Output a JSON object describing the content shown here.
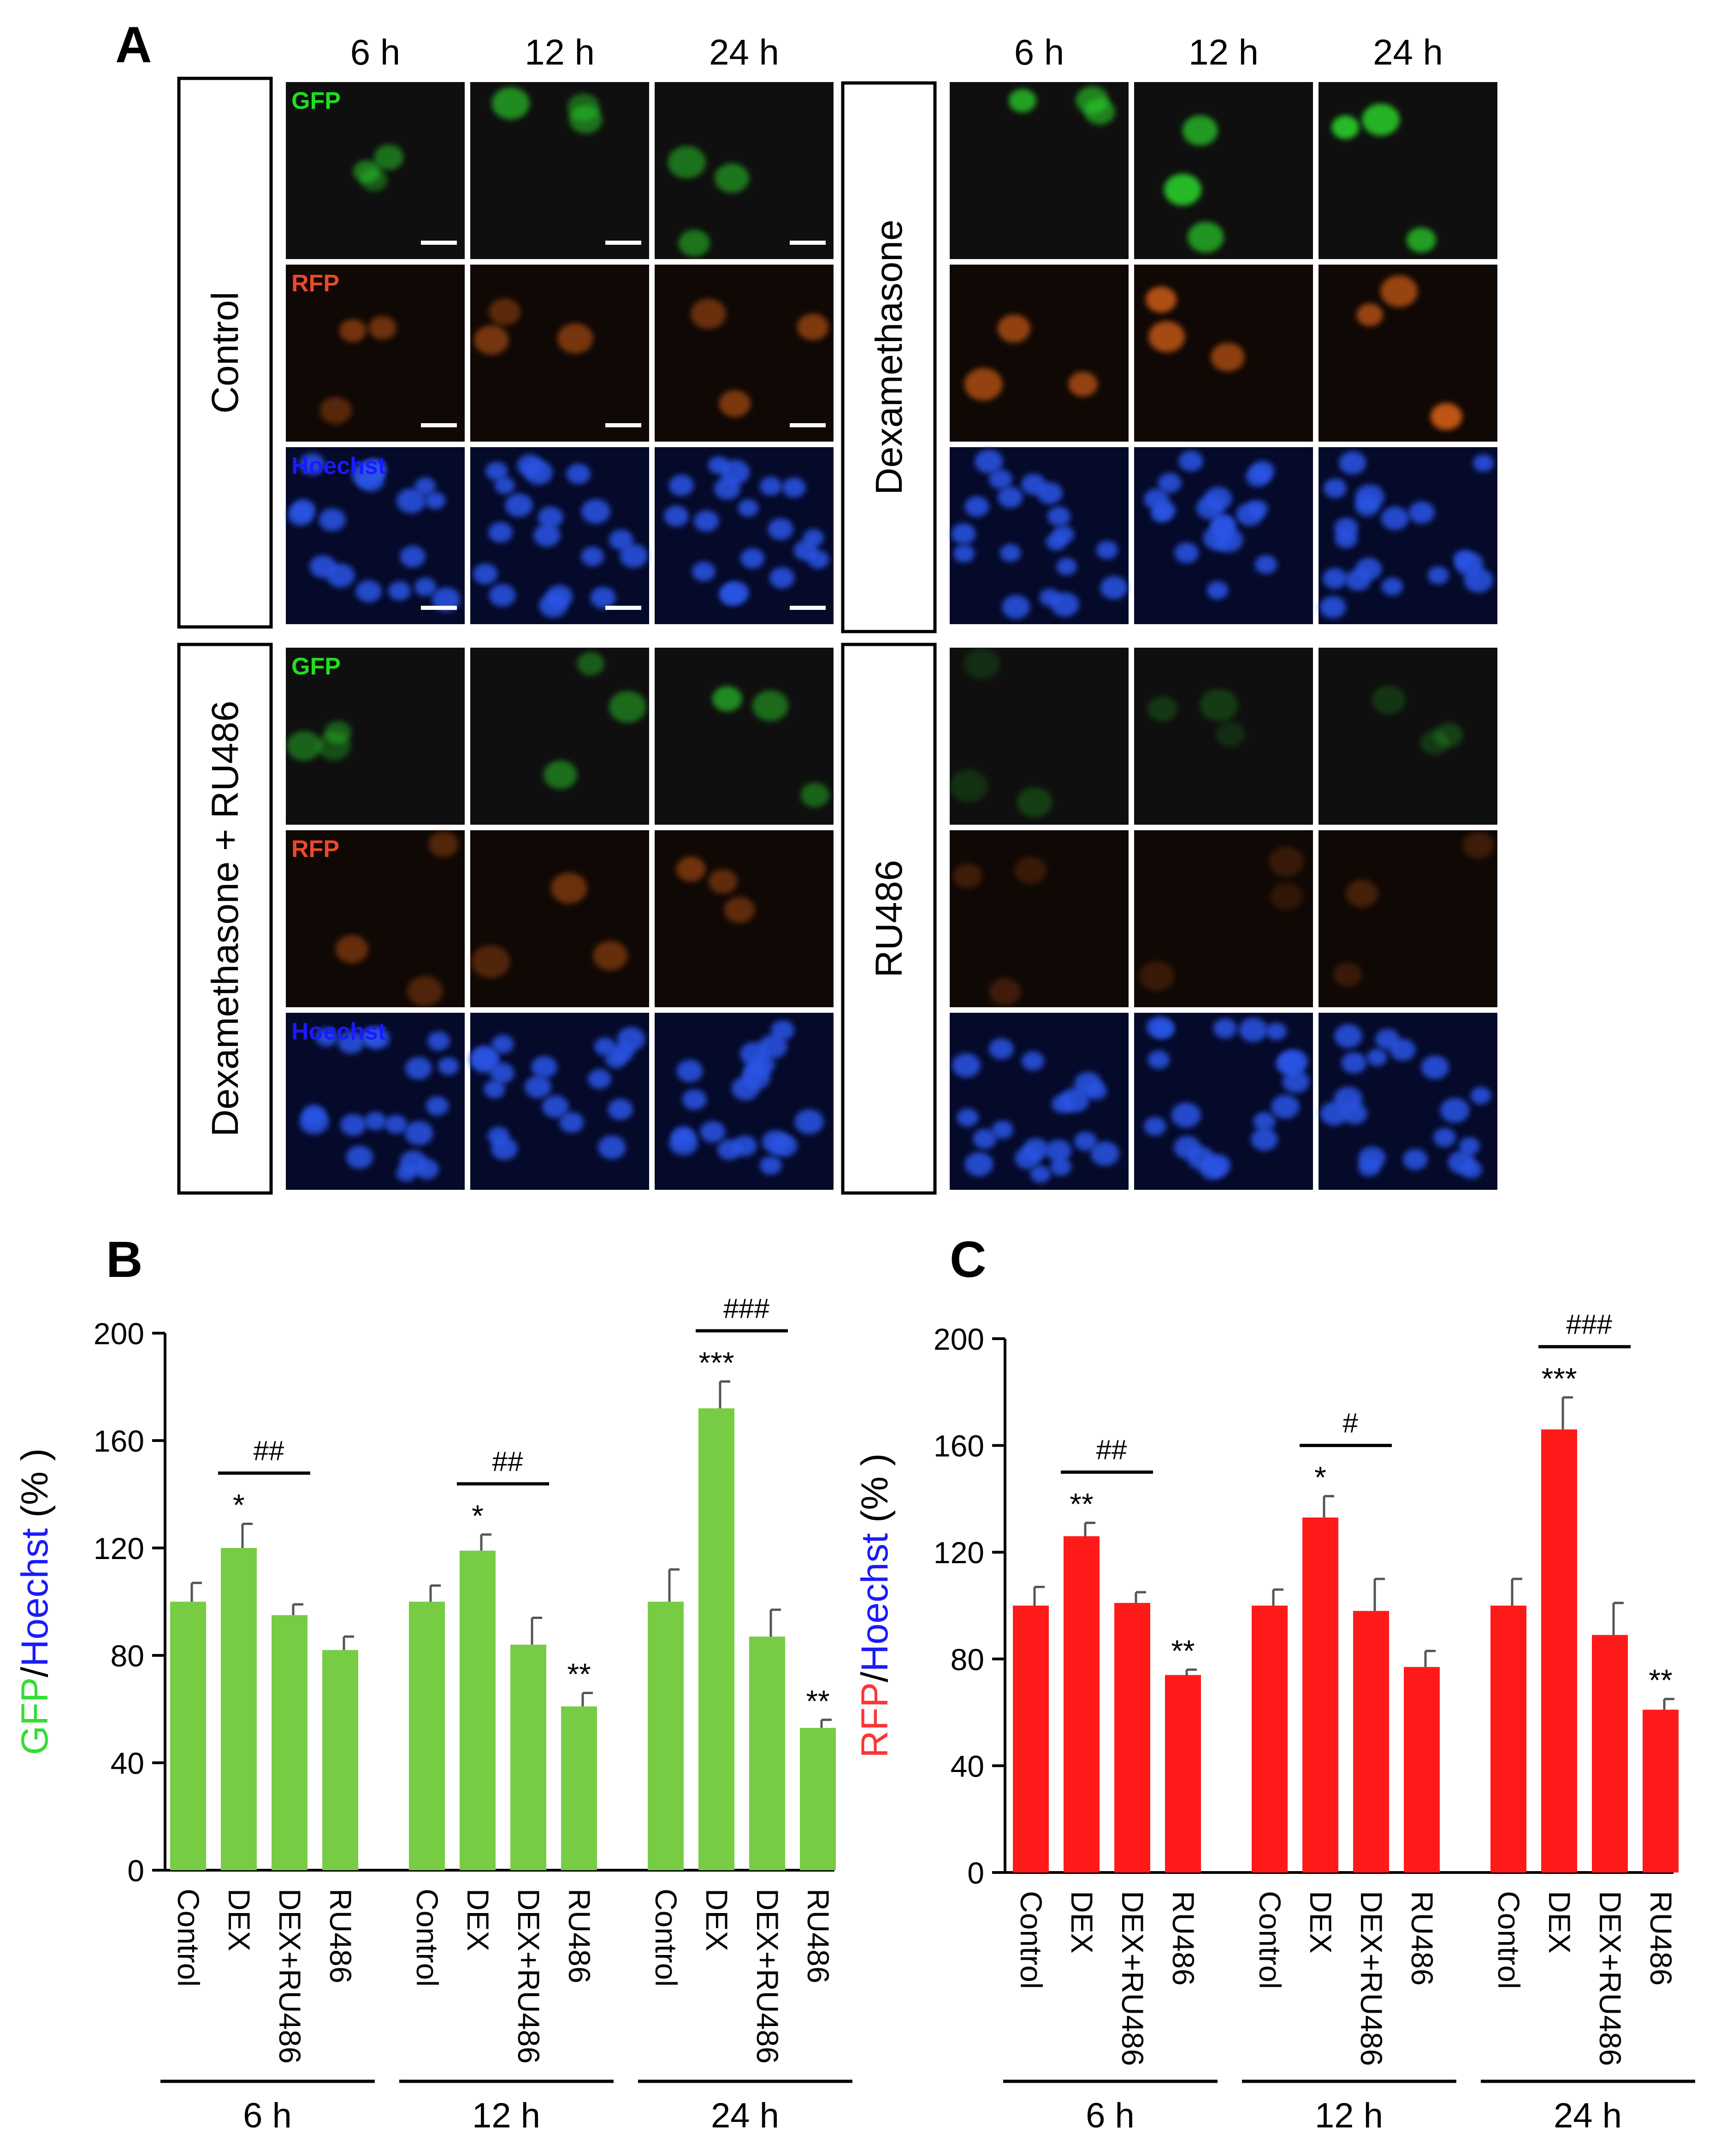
{
  "panel_letters": {
    "a": "A",
    "b": "B",
    "c": "C"
  },
  "micrograph_grid": {
    "time_labels": [
      "6 h",
      "12 h",
      "24 h"
    ],
    "channel_labels": {
      "gfp": "GFP",
      "rfp": "RFP",
      "hoechst": "Hoechst"
    },
    "conditions": [
      "Control",
      "Dexamethasone",
      "Dexamethasone + RU486",
      "RU486"
    ],
    "channel_colors": {
      "gfp": "#1fe01f",
      "rfp": "#e84a2a",
      "hoechst": "#1a1aff"
    }
  },
  "chart_data": [
    {
      "type": "bar",
      "panel": "B",
      "ylabel_parts": [
        "GFP",
        "/",
        "Hoechst",
        " (% )"
      ],
      "ylabel_colors": [
        "#33dd33",
        "#000000",
        "#1a1aff",
        "#000000"
      ],
      "ylim": [
        0,
        200
      ],
      "yticks": [
        0,
        40,
        80,
        120,
        160,
        200
      ],
      "bar_color": "#77cc44",
      "groups": [
        "6 h",
        "12 h",
        "24 h"
      ],
      "categories": [
        "Control",
        "DEX",
        "DEX+RU486",
        "RU486"
      ],
      "values": [
        [
          100,
          120,
          95,
          82
        ],
        [
          100,
          119,
          84,
          61
        ],
        [
          100,
          172,
          87,
          53
        ]
      ],
      "errors": [
        [
          7,
          9,
          4,
          5
        ],
        [
          6,
          6,
          10,
          5
        ],
        [
          12,
          10,
          10,
          3
        ]
      ],
      "marks": [
        [
          "",
          "*",
          "",
          ""
        ],
        [
          "",
          "*",
          "",
          "**"
        ],
        [
          "",
          "***",
          "",
          "**"
        ]
      ],
      "group_marks": [
        "##",
        "##",
        "###"
      ]
    },
    {
      "type": "bar",
      "panel": "C",
      "ylabel_parts": [
        "RFP",
        "/",
        "Hoechst",
        " (% )"
      ],
      "ylabel_colors": [
        "#ff3333",
        "#000000",
        "#1a1aff",
        "#000000"
      ],
      "ylim": [
        0,
        200
      ],
      "yticks": [
        0,
        40,
        80,
        120,
        160,
        200
      ],
      "bar_color": "#ff1a1a",
      "groups": [
        "6 h",
        "12 h",
        "24 h"
      ],
      "categories": [
        "Control",
        "DEX",
        "DEX+RU486",
        "RU486"
      ],
      "values": [
        [
          100,
          126,
          101,
          74
        ],
        [
          100,
          133,
          98,
          77
        ],
        [
          100,
          166,
          89,
          61
        ]
      ],
      "errors": [
        [
          7,
          5,
          4,
          2
        ],
        [
          6,
          8,
          12,
          6
        ],
        [
          10,
          12,
          12,
          4
        ]
      ],
      "marks": [
        [
          "",
          "**",
          "",
          "**"
        ],
        [
          "",
          "*",
          "",
          ""
        ],
        [
          "",
          "***",
          "",
          "**"
        ]
      ],
      "group_marks": [
        "##",
        "#",
        "###"
      ]
    }
  ]
}
